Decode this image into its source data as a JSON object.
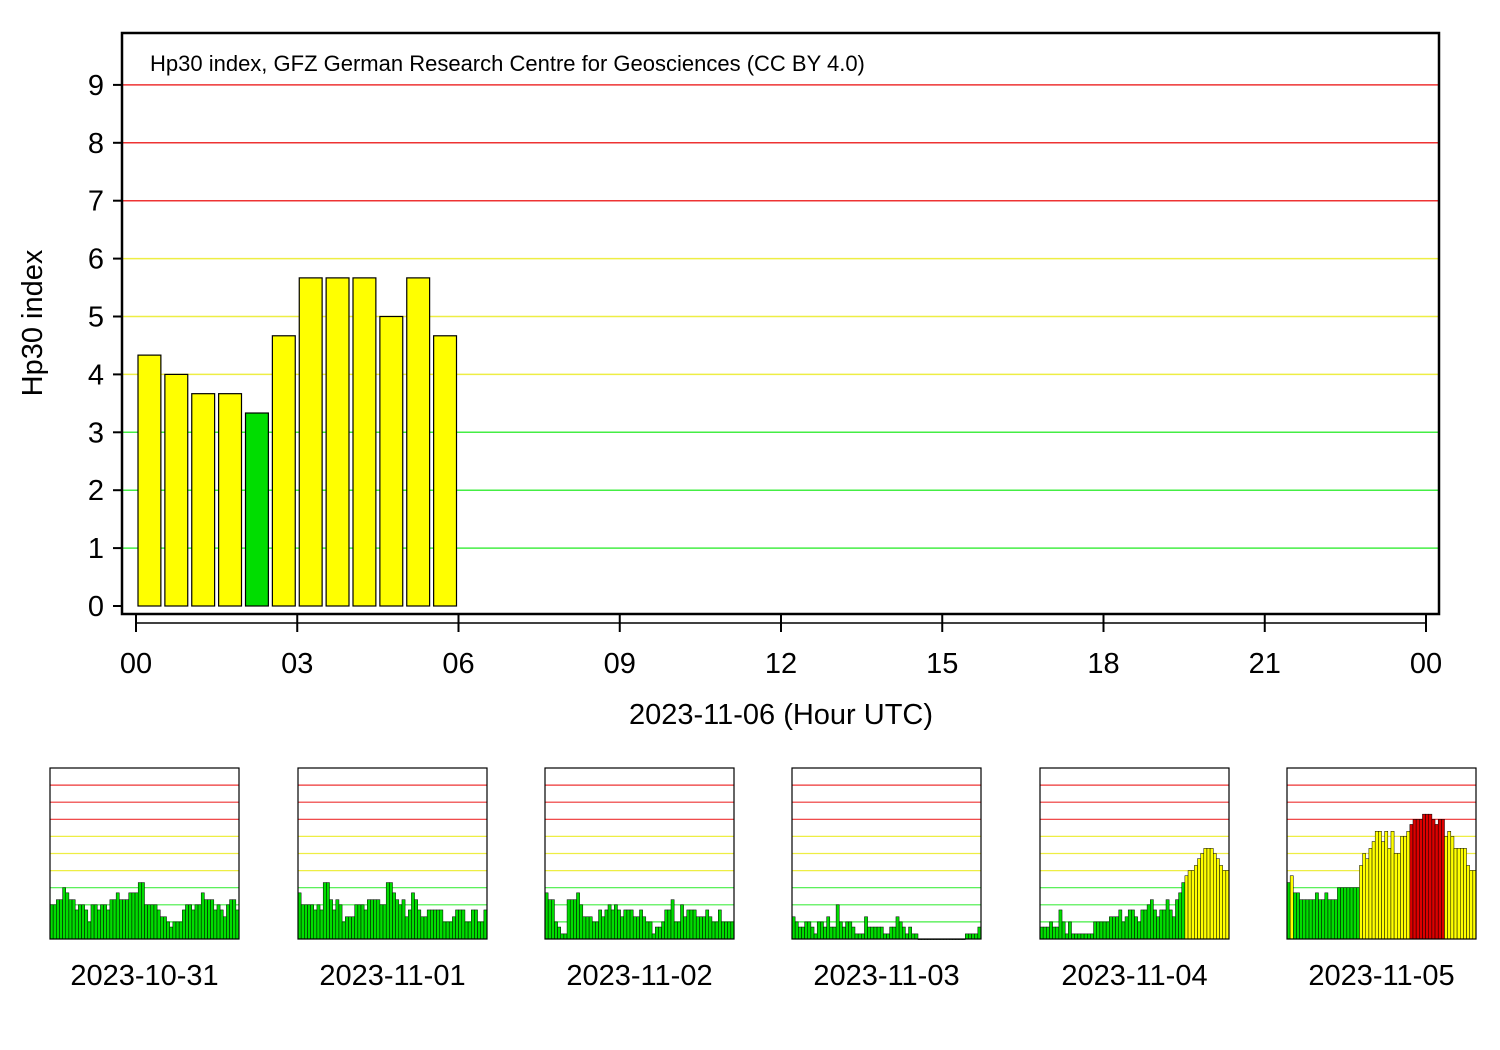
{
  "chart_data": [
    {
      "type": "bar",
      "title": "Hp30 index, GFZ German Research Centre for Geosciences (CC BY 4.0)",
      "xlabel": "2023-11-06 (Hour UTC)",
      "ylabel": "Hp30 index",
      "ylim": [
        0,
        9.8
      ],
      "xlim": [
        0,
        24
      ],
      "yticks": [
        "0",
        "1",
        "2",
        "3",
        "4",
        "5",
        "6",
        "7",
        "8",
        "9"
      ],
      "xticks": [
        "00",
        "03",
        "06",
        "09",
        "12",
        "15",
        "18",
        "21",
        "00"
      ],
      "bar_width_hours": 0.5,
      "x": [
        0.0,
        0.5,
        1.0,
        1.5,
        2.0,
        2.5,
        3.0,
        3.5,
        4.0,
        4.5,
        5.0,
        5.5
      ],
      "values": [
        4.333,
        4.0,
        3.667,
        3.667,
        3.333,
        4.667,
        5.667,
        5.667,
        5.667,
        5.0,
        5.667,
        4.667
      ],
      "level_colors": {
        "quiet": "#00dd00",
        "active": "#ffff00",
        "storm": "#dd0000"
      },
      "gridline_colors": {
        "quiet": "#44ee44",
        "active": "#eeee44",
        "storm": "#ee3333"
      }
    },
    {
      "type": "bar",
      "xlabel": "2023-10-31",
      "ylim": [
        0,
        10
      ],
      "values": [
        2,
        2,
        2.3,
        2.3,
        3,
        2.7,
        2.3,
        2.3,
        1.7,
        2,
        2,
        1.7,
        1,
        2,
        2,
        1.7,
        2,
        2,
        1.7,
        2.3,
        2.3,
        2.7,
        2.3,
        2.3,
        2.3,
        2.7,
        2.7,
        2.7,
        3.3,
        3.3,
        2,
        2,
        2,
        2,
        1.7,
        1.3,
        1.3,
        1,
        0.7,
        1,
        1,
        1,
        1.7,
        2,
        2,
        1.7,
        2,
        2,
        2.7,
        2.3,
        2.3,
        2.3,
        1.7,
        2,
        1.7,
        1.3,
        2,
        2.3,
        2.3,
        1.7
      ]
    },
    {
      "type": "bar",
      "xlabel": "2023-11-01",
      "ylim": [
        0,
        10
      ],
      "values": [
        2.7,
        2,
        2,
        2,
        2,
        1.7,
        2,
        1.7,
        3.3,
        3.3,
        2.3,
        1.7,
        2.3,
        2,
        1,
        1.3,
        1.3,
        1.3,
        2,
        2,
        2,
        1.7,
        2.3,
        2.3,
        2.3,
        2.3,
        2,
        2,
        3.3,
        3.3,
        2.7,
        2.3,
        2,
        2.3,
        1.3,
        1.7,
        2.7,
        2.3,
        1.7,
        1.3,
        1.3,
        1.7,
        1.7,
        1.7,
        1.7,
        1.7,
        1,
        1,
        1,
        1.3,
        1.7,
        1.7,
        1.7,
        1,
        1,
        1.7,
        1.7,
        1,
        1,
        1.7
      ]
    },
    {
      "type": "bar",
      "xlabel": "2023-11-02",
      "ylim": [
        0,
        10
      ],
      "values": [
        2.7,
        2.3,
        2.3,
        1,
        0.7,
        0.3,
        0.3,
        2.3,
        2.3,
        2.3,
        2.7,
        2,
        1.3,
        1.3,
        1.3,
        1,
        1,
        1.7,
        1.3,
        1.7,
        2,
        1.7,
        2,
        1.7,
        1.3,
        1.7,
        1.7,
        1.7,
        1.3,
        1.3,
        1.7,
        1.3,
        1,
        1,
        0.3,
        0.7,
        0.7,
        1,
        1.7,
        1.7,
        2.3,
        1,
        1,
        2,
        1.3,
        1.7,
        1.7,
        1.7,
        1.3,
        1.3,
        1.3,
        1.7,
        1.3,
        1,
        1,
        1.7,
        1,
        1,
        1,
        1
      ]
    },
    {
      "type": "bar",
      "xlabel": "2023-11-03",
      "ylim": [
        0,
        10
      ],
      "values": [
        1.3,
        1,
        0.7,
        0.7,
        1,
        1,
        0.7,
        0.3,
        1,
        1,
        0.7,
        1.3,
        0.7,
        0.7,
        2,
        1,
        0.7,
        1,
        1,
        0.7,
        0.3,
        0.3,
        0.3,
        1.3,
        0.7,
        0.7,
        0.7,
        0.7,
        0.7,
        0.3,
        0.3,
        0.7,
        0.7,
        1.3,
        1,
        0.7,
        0.3,
        0.7,
        0.3,
        0.3,
        0,
        0,
        0,
        0,
        0,
        0,
        0,
        0,
        0,
        0,
        0,
        0,
        0,
        0,
        0,
        0.3,
        0.3,
        0.3,
        0.3,
        0.7
      ]
    },
    {
      "type": "bar",
      "xlabel": "2023-11-04",
      "ylim": [
        0,
        10
      ],
      "values": [
        0.7,
        0.7,
        0.7,
        1,
        0.7,
        0.7,
        1.7,
        1,
        0.3,
        1,
        0.3,
        0.3,
        0.3,
        0.3,
        0.3,
        0.3,
        0.3,
        1,
        1,
        1,
        1,
        1,
        1.3,
        1.3,
        1.3,
        1.7,
        1,
        1.3,
        1.7,
        1.7,
        1.3,
        1,
        1.7,
        1.7,
        2,
        2.3,
        1.7,
        1.3,
        1.7,
        1.7,
        2.3,
        1.7,
        1.3,
        2.3,
        2.7,
        3.3,
        3.7,
        4,
        4,
        4.3,
        4.7,
        5,
        5.3,
        5.3,
        5.3,
        5,
        4.7,
        4.3,
        4,
        4
      ]
    },
    {
      "type": "bar",
      "xlabel": "2023-11-05",
      "ylim": [
        0,
        10
      ],
      "values": [
        3.3,
        3.7,
        2.7,
        2.7,
        2.3,
        2.3,
        2.3,
        2.3,
        2.3,
        2.7,
        2.3,
        2.3,
        2.7,
        2.3,
        2.3,
        2.3,
        3,
        3,
        3,
        3,
        3,
        3,
        3,
        4.3,
        5,
        4.7,
        5.3,
        5.7,
        6.3,
        6.3,
        5.7,
        6.3,
        5.3,
        6.3,
        5,
        5,
        6,
        6,
        6.3,
        6.7,
        7,
        7,
        7,
        7.3,
        7.3,
        7.3,
        7,
        6.7,
        7,
        7,
        6,
        6.3,
        6,
        5.3,
        5.3,
        5.3,
        5.3,
        4.3,
        4,
        4
      ]
    }
  ]
}
